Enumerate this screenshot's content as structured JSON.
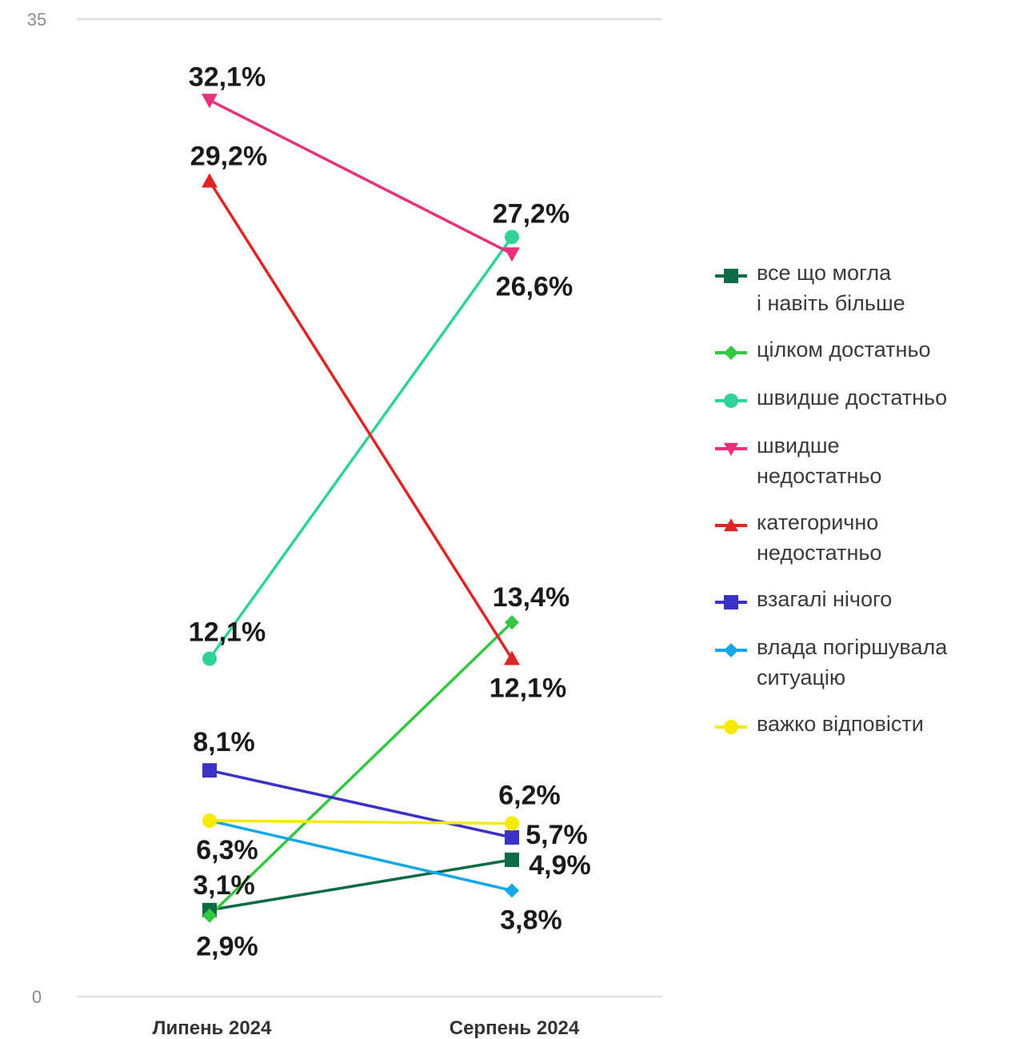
{
  "chart_data": {
    "type": "line",
    "categories": [
      "Липень 2024",
      "Серпень 2024"
    ],
    "ylim": [
      0,
      35
    ],
    "yticks": [
      0,
      35
    ],
    "grid": false,
    "legend_position": "right",
    "series": [
      {
        "name": "все що могла\nі навіть більше",
        "values": [
          3.1,
          4.9
        ],
        "labels": [
          "3,1%",
          "4,9%"
        ],
        "color": "#0d6b45",
        "marker": "square"
      },
      {
        "name": "цілком достатньо",
        "values": [
          2.9,
          13.4
        ],
        "labels": [
          "2,9%",
          "13,4%"
        ],
        "color": "#32c840",
        "marker": "diamond"
      },
      {
        "name": "швидше достатньо",
        "values": [
          12.1,
          27.2
        ],
        "labels": [
          "12,1%",
          "27,2%"
        ],
        "color": "#2fd39a",
        "marker": "circle"
      },
      {
        "name": "швидше\nнедостатньо",
        "values": [
          32.1,
          26.6
        ],
        "labels": [
          "32,1%",
          "26,6%"
        ],
        "color": "#e8317a",
        "marker": "triangle-down"
      },
      {
        "name": "категорично\nнедостатньо",
        "values": [
          29.2,
          12.1
        ],
        "labels": [
          "29,2%",
          "12,1%"
        ],
        "color": "#e02424",
        "marker": "triangle-up"
      },
      {
        "name": "взагалі нічого",
        "values": [
          8.1,
          5.7
        ],
        "labels": [
          "8,1%",
          "5,7%"
        ],
        "color": "#3a32c8",
        "marker": "square"
      },
      {
        "name": "влада погіршувала\nситуацію",
        "values": [
          6.3,
          3.8
        ],
        "labels": [
          "6,3%",
          "3,8%"
        ],
        "color": "#14a8e8",
        "marker": "diamond"
      },
      {
        "name": "важко відповісти",
        "values": [
          6.3,
          6.2
        ],
        "labels": [
          "",
          "6,2%"
        ],
        "color": "#f5ea00",
        "marker": "circle"
      }
    ]
  }
}
